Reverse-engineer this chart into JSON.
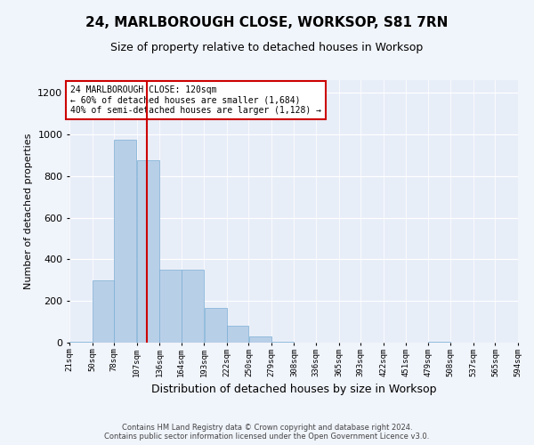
{
  "title": "24, MARLBOROUGH CLOSE, WORKSOP, S81 7RN",
  "subtitle": "Size of property relative to detached houses in Worksop",
  "xlabel": "Distribution of detached houses by size in Worksop",
  "ylabel": "Number of detached properties",
  "bin_edges": [
    21,
    50,
    78,
    107,
    136,
    164,
    193,
    222,
    250,
    279,
    308,
    336,
    365,
    393,
    422,
    451,
    479,
    508,
    537,
    565,
    594
  ],
  "bar_heights": [
    5,
    300,
    975,
    875,
    350,
    350,
    165,
    80,
    30,
    5,
    0,
    0,
    0,
    0,
    0,
    0,
    5,
    0,
    0,
    0
  ],
  "bar_color": "#b8cfe8",
  "bar_edge_color": "#7bafd4",
  "property_size": 120,
  "vline_color": "#cc0000",
  "annotation_text": "24 MARLBOROUGH CLOSE: 120sqm\n← 60% of detached houses are smaller (1,684)\n40% of semi-detached houses are larger (1,128) →",
  "annotation_box_color": "#ffffff",
  "annotation_box_edge": "#cc0000",
  "ylim": [
    0,
    1260
  ],
  "yticks": [
    0,
    200,
    400,
    600,
    800,
    1000,
    1200
  ],
  "footer_line1": "Contains HM Land Registry data © Crown copyright and database right 2024.",
  "footer_line2": "Contains public sector information licensed under the Open Government Licence v3.0.",
  "bg_color": "#f0f4fb",
  "plot_bg_color": "#e8eef8",
  "title_fontsize": 11,
  "subtitle_fontsize": 9,
  "xlabel_fontsize": 9,
  "ylabel_fontsize": 8,
  "xtick_fontsize": 6.5,
  "ytick_fontsize": 8,
  "footer_fontsize": 6
}
